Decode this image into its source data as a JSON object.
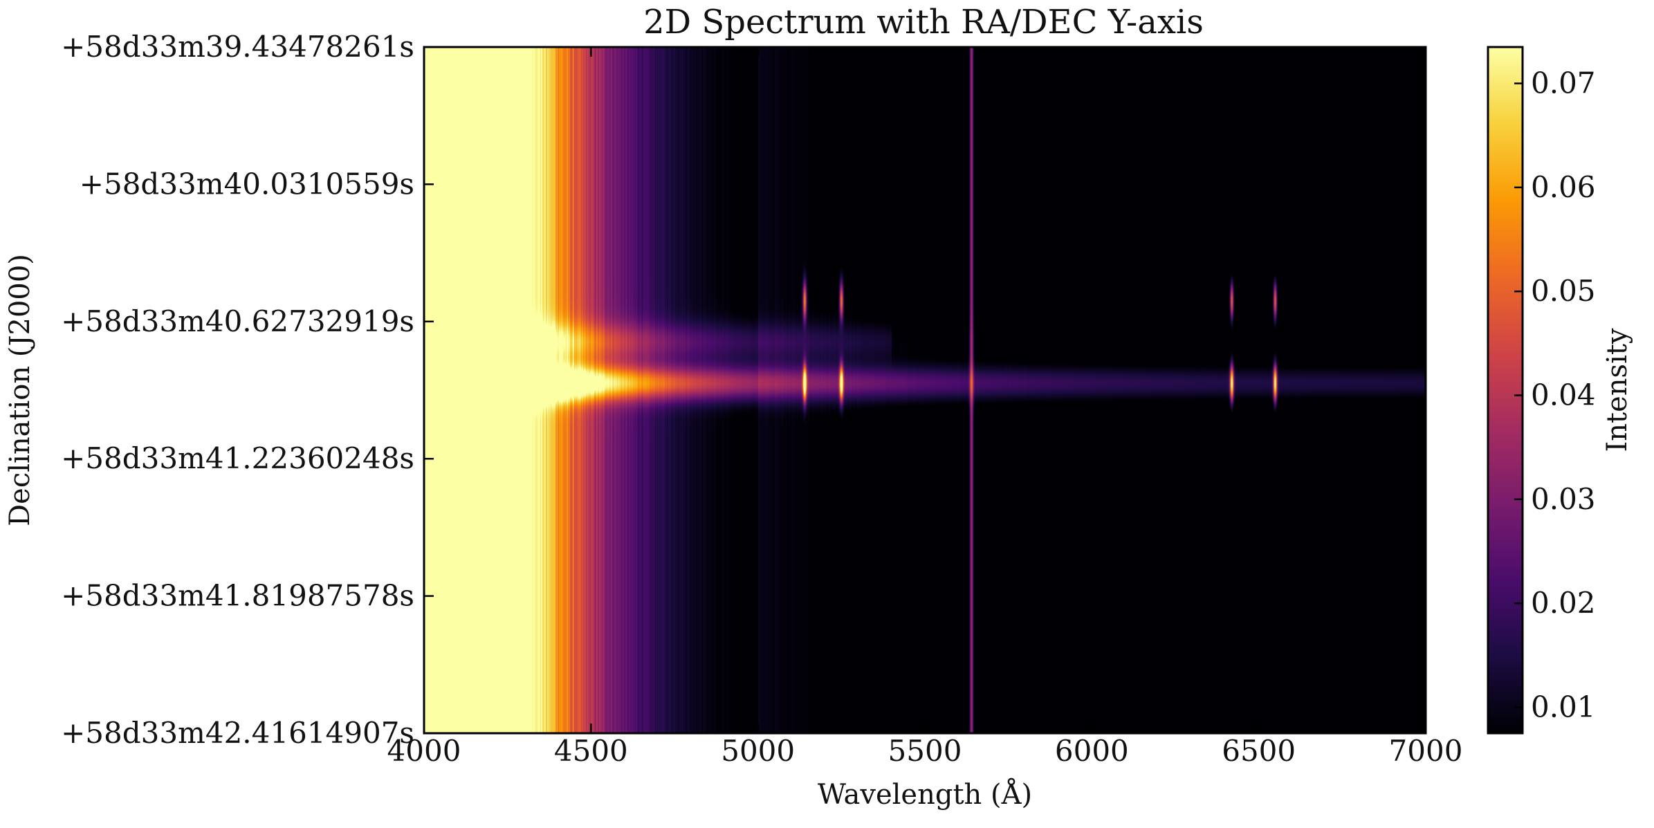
{
  "chart_data": {
    "type": "heatmap",
    "title": "2D Spectrum with RA/DEC Y-axis",
    "xlabel": "Wavelength (Å)",
    "ylabel": "Declination (J2000)",
    "colorbar_label": "Intensity",
    "colormap": "inferno",
    "xlim": [
      4000,
      7000
    ],
    "x_ticks": [
      4000,
      4500,
      5000,
      5500,
      6000,
      6500,
      7000
    ],
    "y_ticks": [
      "+58d33m39.43478261s",
      "+58d33m40.0310559s",
      "+58d33m40.62732919s",
      "+58d33m41.22360248s",
      "+58d33m41.81987578s",
      "+58d33m42.41614907s"
    ],
    "clim": [
      0.0075,
      0.0735
    ],
    "colorbar_ticks": [
      0.01,
      0.02,
      0.03,
      0.04,
      0.05,
      0.06,
      0.07
    ],
    "features": {
      "trace_center_fraction": 0.49,
      "emission_lines_A": [
        5140,
        5250,
        5640,
        6420,
        6550
      ]
    }
  },
  "colors": {
    "cmap_stops": [
      "#000004",
      "#1b0c41",
      "#4a0c6b",
      "#781c6d",
      "#a52c60",
      "#cf4446",
      "#ed6925",
      "#fb9b06",
      "#f7d13d",
      "#fcffa4"
    ]
  }
}
